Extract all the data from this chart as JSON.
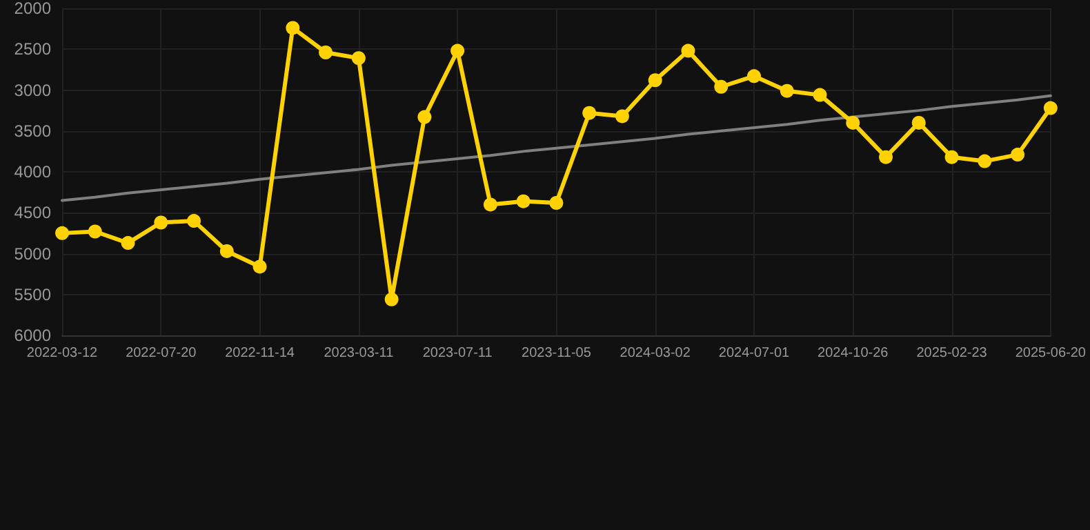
{
  "chart_data": {
    "type": "line",
    "categories": [
      "2022-03-12",
      null,
      null,
      "2022-07-20",
      null,
      null,
      "2022-11-14",
      null,
      null,
      "2023-03-11",
      null,
      null,
      "2023-07-11",
      null,
      null,
      "2023-11-05",
      null,
      null,
      "2024-03-02",
      null,
      null,
      "2024-07-01",
      null,
      null,
      "2024-10-26",
      null,
      null,
      "2025-02-23",
      null,
      null,
      "2025-06-20"
    ],
    "series": [
      {
        "color": "#ffd200",
        "values": [
          4750,
          4730,
          4870,
          4620,
          4600,
          4970,
          5160,
          2240,
          2540,
          2610,
          5560,
          3330,
          2520,
          4400,
          4360,
          4380,
          3280,
          3320,
          2880,
          2520,
          2960,
          2830,
          3010,
          3060,
          3400,
          3820,
          3400,
          3820,
          3870,
          3790,
          3220
        ]
      },
      {
        "color": "#808080",
        "marker": "none",
        "values": [
          4350,
          4310,
          4260,
          4220,
          4180,
          4140,
          4090,
          4050,
          4010,
          3970,
          3920,
          3880,
          3840,
          3800,
          3750,
          3710,
          3670,
          3630,
          3590,
          3540,
          3500,
          3460,
          3420,
          3370,
          3330,
          3290,
          3250,
          3200,
          3160,
          3120,
          3070
        ]
      }
    ],
    "ylim": [
      6000,
      2000
    ],
    "yticks": [
      2000,
      2500,
      3000,
      3500,
      4000,
      4500,
      5000,
      5500,
      6000
    ],
    "grid": true,
    "marker": "circle",
    "line_style": "solid"
  }
}
